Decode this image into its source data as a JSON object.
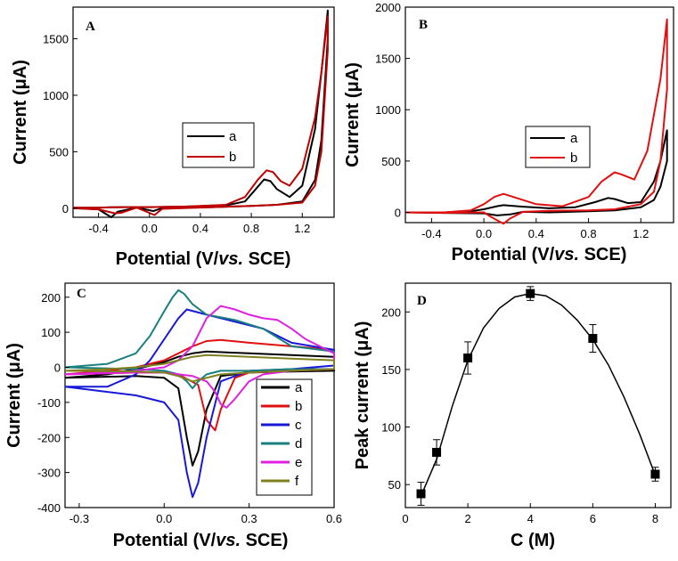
{
  "chart_data": [
    {
      "id": "A",
      "type": "line",
      "panel_label": "A",
      "xlabel_main": "Potential (V/",
      "xlabel_italic": "vs.",
      "xlabel_end": " SCE)",
      "ylabel": "Current (μA)",
      "xlim": [
        -0.6,
        1.45
      ],
      "ylim": [
        -80,
        1780
      ],
      "xticks": [
        -0.4,
        0.0,
        0.4,
        0.8,
        1.2
      ],
      "xtick_labels": [
        "-0.4",
        "0.0",
        "0.4",
        "0.8",
        "1.2"
      ],
      "yticks": [
        0,
        500,
        1000,
        1500
      ],
      "ytick_labels": [
        "0",
        "500",
        "1000",
        "1500"
      ],
      "legend": [
        "a",
        "b"
      ],
      "series": [
        {
          "name": "a",
          "color": "#000000",
          "x": [
            -0.6,
            -0.4,
            -0.3,
            -0.2,
            0.0,
            0.3,
            0.6,
            0.75,
            0.82,
            0.9,
            0.95,
            1.0,
            1.1,
            1.2,
            1.3,
            1.35,
            1.4,
            1.4,
            1.35,
            1.3,
            1.2,
            1.0,
            0.8,
            0.5,
            0.1,
            0.03,
            -0.1,
            -0.25,
            -0.3,
            -0.4,
            -0.6
          ],
          "y": [
            5,
            5,
            8,
            10,
            10,
            15,
            25,
            60,
            150,
            255,
            240,
            170,
            100,
            200,
            700,
            1200,
            1750,
            1500,
            600,
            250,
            60,
            30,
            20,
            10,
            0,
            -25,
            5,
            -30,
            -80,
            -10,
            0
          ]
        },
        {
          "name": "b",
          "color": "#c00000",
          "x": [
            -0.6,
            -0.4,
            -0.3,
            -0.2,
            0.0,
            0.3,
            0.6,
            0.75,
            0.85,
            0.92,
            0.97,
            1.03,
            1.1,
            1.2,
            1.3,
            1.35,
            1.4,
            1.4,
            1.35,
            1.3,
            1.2,
            1.0,
            0.8,
            0.5,
            0.1,
            0.04,
            -0.1,
            -0.22,
            -0.27,
            -0.4,
            -0.6
          ],
          "y": [
            5,
            5,
            8,
            10,
            10,
            15,
            30,
            100,
            250,
            335,
            320,
            240,
            200,
            350,
            800,
            1200,
            1700,
            1400,
            500,
            200,
            50,
            30,
            20,
            10,
            -5,
            -60,
            5,
            -40,
            -45,
            -10,
            0
          ]
        }
      ]
    },
    {
      "id": "B",
      "type": "line",
      "panel_label": "B",
      "xlabel_main": "Potential (V/",
      "xlabel_italic": "vs.",
      "xlabel_end": " SCE)",
      "ylabel": "Current (μA)",
      "xlim": [
        -0.6,
        1.45
      ],
      "ylim": [
        -100,
        2000
      ],
      "xticks": [
        -0.4,
        0.0,
        0.4,
        0.8,
        1.2
      ],
      "xtick_labels": [
        "-0.4",
        "0.0",
        "0.4",
        "0.8",
        "1.2"
      ],
      "yticks": [
        0,
        500,
        1000,
        1500,
        2000
      ],
      "ytick_labels": [
        "0",
        "500",
        "1000",
        "1500",
        "2000"
      ],
      "legend": [
        "a",
        "b"
      ],
      "series": [
        {
          "name": "a",
          "color": "#000000",
          "x": [
            -0.6,
            -0.3,
            -0.1,
            0.0,
            0.1,
            0.15,
            0.3,
            0.5,
            0.7,
            0.85,
            0.95,
            1.0,
            1.1,
            1.2,
            1.3,
            1.35,
            1.4,
            1.4,
            1.35,
            1.3,
            1.2,
            1.0,
            0.8,
            0.5,
            0.3,
            0.2,
            0.1,
            0.0,
            -0.3,
            -0.6
          ],
          "y": [
            0,
            0,
            10,
            30,
            60,
            70,
            55,
            40,
            50,
            100,
            140,
            130,
            90,
            100,
            300,
            500,
            800,
            500,
            250,
            120,
            50,
            20,
            10,
            0,
            5,
            -20,
            -30,
            -10,
            -5,
            0
          ]
        },
        {
          "name": "b",
          "color": "#e01010",
          "x": [
            -0.6,
            -0.3,
            -0.1,
            0.0,
            0.08,
            0.15,
            0.25,
            0.4,
            0.6,
            0.8,
            0.9,
            1.0,
            1.05,
            1.15,
            1.25,
            1.35,
            1.4,
            1.4,
            1.35,
            1.3,
            1.2,
            1.0,
            0.8,
            0.5,
            0.3,
            0.2,
            0.15,
            0.05,
            0.0,
            -0.3,
            -0.6
          ],
          "y": [
            0,
            0,
            20,
            80,
            150,
            180,
            140,
            80,
            60,
            150,
            300,
            390,
            370,
            320,
            600,
            1300,
            1880,
            1200,
            500,
            200,
            80,
            30,
            20,
            15,
            5,
            -60,
            -110,
            -40,
            0,
            -5,
            0
          ]
        }
      ]
    },
    {
      "id": "C",
      "type": "line",
      "panel_label": "C",
      "xlabel_main": "Potential (V/",
      "xlabel_italic": "vs.",
      "xlabel_end": " SCE)",
      "ylabel": "Current (μA)",
      "xlim": [
        -0.35,
        0.6
      ],
      "ylim": [
        -400,
        240
      ],
      "xticks": [
        -0.3,
        0.0,
        0.3,
        0.6
      ],
      "xtick_labels": [
        "-0.3",
        "0.0",
        "0.3",
        "0.6"
      ],
      "yticks": [
        -400,
        -300,
        -200,
        -100,
        0,
        100,
        200
      ],
      "ytick_labels": [
        "-400",
        "-300",
        "-200",
        "-100",
        "0",
        "100",
        "200"
      ],
      "legend": [
        "a",
        "b",
        "c",
        "d",
        "e",
        "f"
      ],
      "series": [
        {
          "name": "a",
          "color": "#000000",
          "x": [
            -0.35,
            -0.2,
            -0.1,
            0.0,
            0.05,
            0.1,
            0.15,
            0.3,
            0.45,
            0.6,
            0.6,
            0.45,
            0.3,
            0.2,
            0.15,
            0.12,
            0.1,
            0.08,
            0.05,
            0.0,
            -0.1,
            -0.35
          ],
          "y": [
            -30,
            -20,
            -5,
            15,
            30,
            40,
            45,
            40,
            35,
            30,
            -10,
            -12,
            -15,
            -25,
            -120,
            -240,
            -280,
            -200,
            -60,
            -30,
            -25,
            -30
          ]
        },
        {
          "name": "b",
          "color": "#e01010",
          "x": [
            -0.35,
            -0.2,
            -0.1,
            0.0,
            0.05,
            0.1,
            0.15,
            0.2,
            0.3,
            0.45,
            0.6,
            0.6,
            0.45,
            0.3,
            0.25,
            0.2,
            0.18,
            0.15,
            0.12,
            0.05,
            0.0,
            -0.1,
            -0.35
          ],
          "y": [
            -20,
            -10,
            0,
            20,
            40,
            60,
            75,
            78,
            70,
            60,
            50,
            -5,
            -10,
            -15,
            -30,
            -120,
            -180,
            -150,
            -50,
            -20,
            -15,
            -15,
            -20
          ]
        },
        {
          "name": "c",
          "color": "#1818d8",
          "x": [
            -0.35,
            -0.2,
            -0.1,
            -0.05,
            0.0,
            0.05,
            0.08,
            0.15,
            0.25,
            0.35,
            0.45,
            0.6,
            0.6,
            0.45,
            0.3,
            0.2,
            0.15,
            0.12,
            0.1,
            0.08,
            0.05,
            0.0,
            -0.05,
            -0.1,
            -0.2,
            -0.35
          ],
          "y": [
            -55,
            -55,
            -20,
            20,
            80,
            140,
            165,
            150,
            130,
            110,
            70,
            50,
            5,
            -5,
            -10,
            -40,
            -200,
            -330,
            -370,
            -300,
            -150,
            -100,
            -90,
            -80,
            -70,
            -55
          ]
        },
        {
          "name": "d",
          "color": "#1a7f7f",
          "x": [
            -0.35,
            -0.2,
            -0.1,
            -0.05,
            0.0,
            0.03,
            0.05,
            0.07,
            0.1,
            0.15,
            0.25,
            0.35,
            0.45,
            0.6,
            0.6,
            0.45,
            0.3,
            0.2,
            0.15,
            0.12,
            0.1,
            0.08,
            0.05,
            0.0,
            -0.1,
            -0.35
          ],
          "y": [
            0,
            10,
            40,
            90,
            160,
            200,
            220,
            210,
            180,
            150,
            135,
            110,
            60,
            45,
            -5,
            -5,
            -10,
            -10,
            -20,
            -40,
            -60,
            -40,
            -20,
            -10,
            -5,
            0
          ]
        },
        {
          "name": "e",
          "color": "#e020e0",
          "x": [
            -0.35,
            -0.2,
            -0.1,
            0.0,
            0.05,
            0.1,
            0.15,
            0.2,
            0.25,
            0.3,
            0.35,
            0.4,
            0.45,
            0.5,
            0.55,
            0.6,
            0.6,
            0.45,
            0.35,
            0.3,
            0.25,
            0.22,
            0.2,
            0.18,
            0.15,
            0.1,
            0.0,
            -0.1,
            -0.35
          ],
          "y": [
            -20,
            -15,
            -10,
            0,
            20,
            60,
            140,
            175,
            165,
            150,
            140,
            135,
            110,
            80,
            60,
            40,
            -5,
            -10,
            -20,
            -40,
            -90,
            -115,
            -105,
            -70,
            -40,
            -25,
            -15,
            -15,
            -20
          ]
        },
        {
          "name": "f",
          "color": "#808020",
          "x": [
            -0.35,
            -0.2,
            -0.1,
            0.0,
            0.05,
            0.1,
            0.15,
            0.3,
            0.45,
            0.6,
            0.6,
            0.45,
            0.3,
            0.2,
            0.15,
            0.1,
            0.05,
            0.0,
            -0.1,
            -0.35
          ],
          "y": [
            -10,
            -5,
            0,
            10,
            20,
            30,
            35,
            30,
            25,
            20,
            -5,
            -10,
            -15,
            -20,
            -30,
            -40,
            -25,
            -15,
            -12,
            -10
          ]
        }
      ]
    },
    {
      "id": "D",
      "type": "scatter",
      "panel_label": "D",
      "xlabel": "C (M)",
      "ylabel": "Peak current (μA)",
      "xlim": [
        0,
        8.5
      ],
      "ylim": [
        30,
        225
      ],
      "xticks": [
        0,
        2,
        4,
        6,
        8
      ],
      "xtick_labels": [
        "0",
        "2",
        "4",
        "6",
        "8"
      ],
      "yticks": [
        50,
        100,
        150,
        200
      ],
      "ytick_labels": [
        "50",
        "100",
        "150",
        "200"
      ],
      "points": {
        "x": [
          0.5,
          1,
          2,
          4,
          6,
          8
        ],
        "y": [
          42,
          78,
          160,
          216,
          177,
          59
        ],
        "error": [
          10,
          11,
          14,
          6,
          12,
          6
        ]
      },
      "fit": {
        "x": [
          0.5,
          1,
          1.5,
          2,
          2.5,
          3,
          3.5,
          4,
          4.5,
          5,
          5.5,
          6,
          6.5,
          7,
          7.5,
          8
        ],
        "y": [
          40,
          72,
          118,
          158,
          186,
          203,
          213,
          216,
          214,
          206,
          193,
          176,
          154,
          126,
          94,
          58
        ]
      }
    }
  ]
}
